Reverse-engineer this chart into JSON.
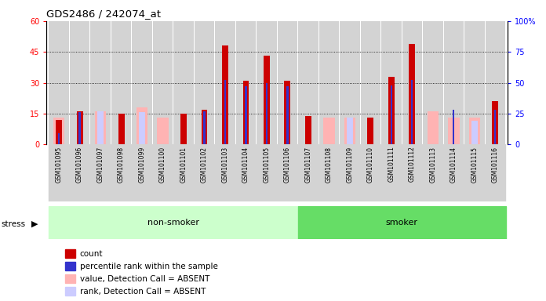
{
  "title": "GDS2486 / 242074_at",
  "samples": [
    "GSM101095",
    "GSM101096",
    "GSM101097",
    "GSM101098",
    "GSM101099",
    "GSM101100",
    "GSM101101",
    "GSM101102",
    "GSM101103",
    "GSM101104",
    "GSM101105",
    "GSM101106",
    "GSM101107",
    "GSM101108",
    "GSM101109",
    "GSM101110",
    "GSM101111",
    "GSM101112",
    "GSM101113",
    "GSM101114",
    "GSM101115",
    "GSM101116"
  ],
  "count": [
    12,
    16,
    0,
    15,
    0,
    0,
    15,
    17,
    48,
    31,
    43,
    31,
    14,
    0,
    0,
    13,
    33,
    49,
    0,
    0,
    0,
    21
  ],
  "percentile": [
    9,
    26,
    0,
    0,
    0,
    0,
    0,
    27,
    52,
    47,
    50,
    47,
    0,
    0,
    0,
    0,
    48,
    52,
    0,
    28,
    0,
    28
  ],
  "absent_value": [
    13,
    0,
    16,
    0,
    18,
    13,
    0,
    0,
    0,
    0,
    0,
    0,
    0,
    13,
    13,
    0,
    0,
    0,
    16,
    13,
    13,
    0
  ],
  "absent_rank": [
    0,
    0,
    27,
    0,
    26,
    0,
    0,
    0,
    0,
    0,
    0,
    0,
    0,
    0,
    22,
    0,
    0,
    0,
    0,
    0,
    19,
    0
  ],
  "non_smoker_count": 12,
  "smoker_count": 10,
  "ylim_left": [
    0,
    60
  ],
  "ylim_right": [
    0,
    100
  ],
  "yticks_left": [
    0,
    15,
    30,
    45,
    60
  ],
  "yticks_right": [
    0,
    25,
    50,
    75,
    100
  ],
  "color_count": "#cc0000",
  "color_percentile": "#3333cc",
  "color_absent_value": "#ffb3b3",
  "color_absent_rank": "#ccccff",
  "color_non_smoker_bg": "#ccffcc",
  "color_smoker_bg": "#66dd66",
  "color_col_bg": "#d3d3d3",
  "legend_items": [
    [
      "#cc0000",
      "count"
    ],
    [
      "#3333cc",
      "percentile rank within the sample"
    ],
    [
      "#ffb3b3",
      "value, Detection Call = ABSENT"
    ],
    [
      "#ccccff",
      "rank, Detection Call = ABSENT"
    ]
  ]
}
